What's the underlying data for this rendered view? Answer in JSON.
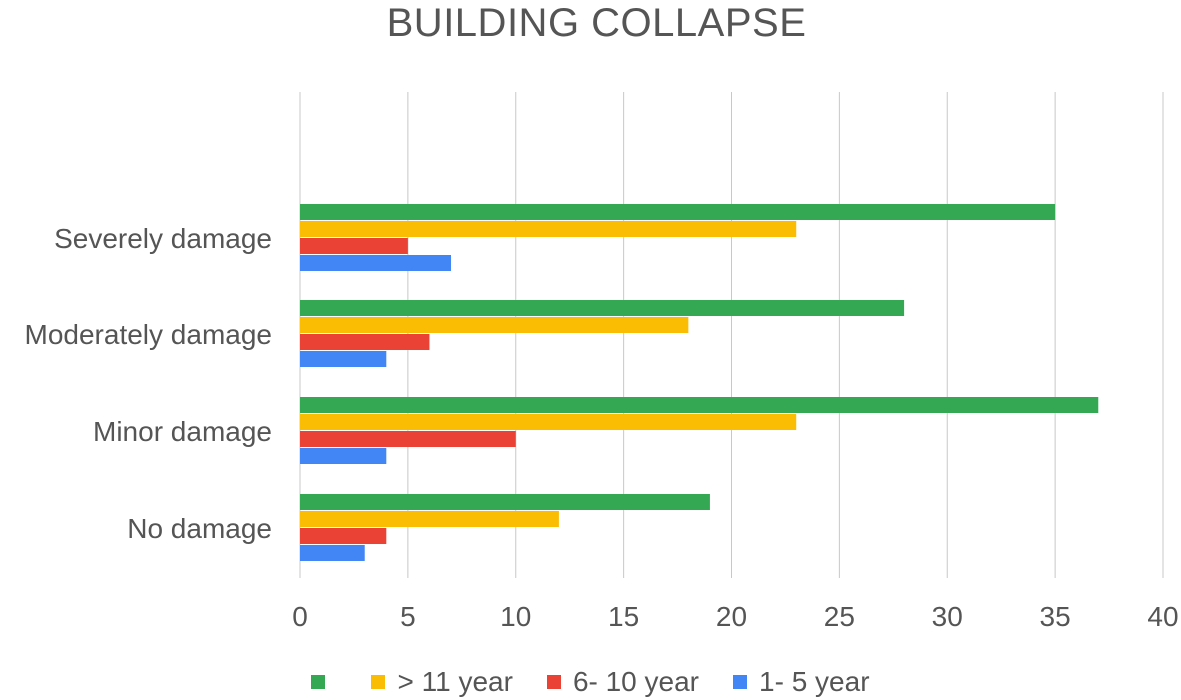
{
  "chart_data": {
    "type": "bar",
    "orientation": "horizontal",
    "title": "BUILDING COLLAPSE",
    "categories": [
      "Severely damage",
      "Moderately damage",
      "Minor damage",
      "No damage"
    ],
    "series": [
      {
        "name": "",
        "color": "#34A853",
        "values": [
          35,
          28,
          37,
          19
        ]
      },
      {
        "name": "> 11 year",
        "color": "#FBBC04",
        "values": [
          23,
          18,
          23,
          12
        ]
      },
      {
        "name": "6- 10 year",
        "color": "#EA4335",
        "values": [
          5,
          6,
          10,
          4
        ]
      },
      {
        "name": "1- 5 year",
        "color": "#4285F4",
        "values": [
          7,
          4,
          4,
          3
        ]
      }
    ],
    "xlim": [
      0,
      40
    ],
    "xticks": [
      0,
      5,
      10,
      15,
      20,
      25,
      30,
      35,
      40
    ],
    "xlabel": "",
    "ylabel": "",
    "grid": "vertical",
    "legend_position": "bottom"
  }
}
